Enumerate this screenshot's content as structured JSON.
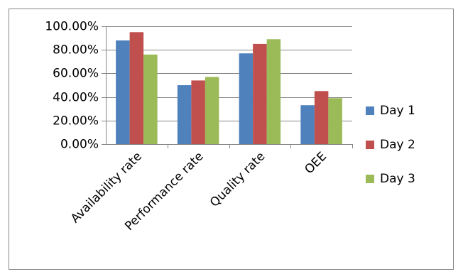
{
  "chart_data": {
    "type": "bar",
    "title": "",
    "xlabel": "",
    "ylabel": "",
    "categories": [
      "Availability rate",
      "Performance rate",
      "Quality rate",
      "OEE"
    ],
    "series": [
      {
        "name": "Day 1",
        "color": "#4f81bd",
        "values": [
          0.88,
          0.5,
          0.77,
          0.33
        ]
      },
      {
        "name": "Day 2",
        "color": "#c0504d",
        "values": [
          0.95,
          0.54,
          0.85,
          0.45
        ]
      },
      {
        "name": "Day 3",
        "color": "#9bbb59",
        "values": [
          0.76,
          0.57,
          0.89,
          0.39
        ]
      }
    ],
    "ylim": [
      0,
      1
    ],
    "yticks": [
      {
        "value": 0.0,
        "label": "0.00%"
      },
      {
        "value": 0.2,
        "label": "20.00%"
      },
      {
        "value": 0.4,
        "label": "40.00%"
      },
      {
        "value": 0.6,
        "label": "60.00%"
      },
      {
        "value": 0.8,
        "label": "80.00%"
      },
      {
        "value": 1.0,
        "label": "100.00%"
      }
    ],
    "grid": true,
    "legend_position": "right"
  }
}
